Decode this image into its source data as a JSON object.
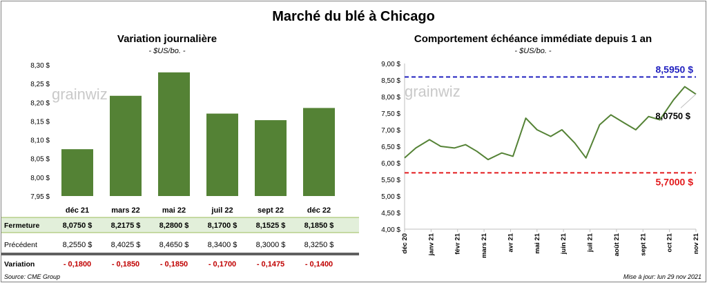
{
  "title": "Marché du blé à Chicago",
  "left": {
    "title": "Variation journalière",
    "unit": "- $US/bo. -"
  },
  "right": {
    "title": "Comportement échéance immédiate depuis 1 an",
    "unit": "- $US/bo. -"
  },
  "watermark": "grainwiz",
  "table": {
    "row_labels": [
      "Fermeture",
      "Précédent",
      "Variation"
    ],
    "fermeture": [
      "8,0750 $",
      "8,2175 $",
      "8,2800 $",
      "8,1700 $",
      "8,1525 $",
      "8,1850 $"
    ],
    "precedent": [
      "8,2550 $",
      "8,4025 $",
      "8,4650 $",
      "8,3400 $",
      "8,3000 $",
      "8,3250 $"
    ],
    "variation": [
      "- 0,1800",
      "- 0,1850",
      "- 0,1850",
      "- 0,1700",
      "- 0,1475",
      "- 0,1400"
    ]
  },
  "footer": {
    "source": "Source: CME Group",
    "update": "Mise à jour: lun 29 nov 2021"
  },
  "colors": {
    "bar": "#548235",
    "line": "#548235",
    "max_line": "#1f1fbf",
    "min_line": "#e31a1c",
    "fermeture_bg": "#e2efda"
  },
  "chart_data": [
    {
      "type": "bar",
      "categories": [
        "déc 21",
        "mars 22",
        "mai 22",
        "juil 22",
        "sept 22",
        "déc 22"
      ],
      "values": [
        8.075,
        8.2175,
        8.28,
        8.17,
        8.1525,
        8.185
      ],
      "ylim": [
        7.95,
        8.3
      ],
      "yticks": [
        "7,95 $",
        "8,00 $",
        "8,05 $",
        "8,10 $",
        "8,15 $",
        "8,20 $",
        "8,25 $",
        "8,30 $"
      ],
      "grid": false
    },
    {
      "type": "line",
      "ylim": [
        4.0,
        9.0
      ],
      "yticks": [
        "4,00 $",
        "4,50 $",
        "5,00 $",
        "5,50 $",
        "6,00 $",
        "6,50 $",
        "7,00 $",
        "7,50 $",
        "8,00 $",
        "8,50 $",
        "9,00 $"
      ],
      "xticks": [
        "déc 20",
        "janv 21",
        "févr 21",
        "mars 21",
        "avr 21",
        "mai 21",
        "juin 21",
        "juil 21",
        "août 21",
        "sept 21",
        "oct 21",
        "nov 21"
      ],
      "x": [
        "2020-12-01",
        "2020-12-15",
        "2021-01-01",
        "2021-01-15",
        "2021-02-01",
        "2021-02-15",
        "2021-03-01",
        "2021-03-15",
        "2021-04-01",
        "2021-04-15",
        "2021-05-01",
        "2021-05-15",
        "2021-06-01",
        "2021-06-15",
        "2021-07-01",
        "2021-07-15",
        "2021-08-01",
        "2021-08-15",
        "2021-09-01",
        "2021-09-15",
        "2021-10-01",
        "2021-10-15",
        "2021-11-01",
        "2021-11-15",
        "2021-11-29"
      ],
      "values": [
        6.15,
        6.45,
        6.7,
        6.5,
        6.45,
        6.55,
        6.35,
        6.1,
        6.3,
        6.2,
        7.35,
        7.0,
        6.8,
        7.0,
        6.6,
        6.15,
        7.15,
        7.45,
        7.2,
        7.0,
        7.4,
        7.3,
        7.9,
        8.3,
        8.075
      ],
      "annotations": {
        "max_label": "8,5950 $",
        "min_label": "5,7000 $",
        "last_label": "8,0750 $"
      },
      "reference_lines": [
        8.595,
        5.7
      ],
      "grid": false
    }
  ]
}
